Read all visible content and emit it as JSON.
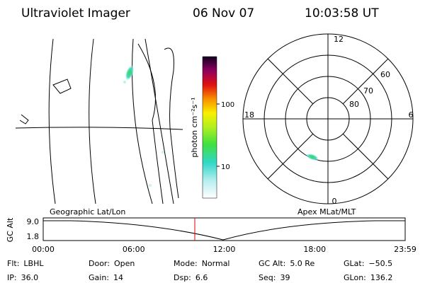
{
  "header": {
    "title": "Ultraviolet Imager",
    "date": "06 Nov 07",
    "time": "10:03:58 UT"
  },
  "colorbar": {
    "label": "photon cm⁻²s⁻¹",
    "ticks": [
      "100",
      "10"
    ]
  },
  "polar": {
    "mlt_labels": [
      "12",
      "18",
      "6",
      "0"
    ],
    "lat_labels": [
      "60",
      "70",
      "80"
    ]
  },
  "panel_labels": {
    "left": "Geographic Lat/Lon",
    "right": "Apex MLat/MLT"
  },
  "alt_plot": {
    "ylabel": "GC Alt",
    "yticks": [
      "9.0",
      "1.8"
    ],
    "xticks": [
      "00:00",
      "06:00",
      "12:00",
      "18:00",
      "23:59"
    ]
  },
  "info": [
    [
      {
        "label": "Flt:",
        "value": "LBHL"
      },
      {
        "label": "Door:",
        "value": "Open"
      },
      {
        "label": "Mode:",
        "value": "Normal"
      },
      {
        "label": "GC Alt:",
        "value": "5.0 Re"
      },
      {
        "label": "GLat:",
        "value": "−50.5"
      }
    ],
    [
      {
        "label": "IP:",
        "value": "36.0"
      },
      {
        "label": "Gain:",
        "value": "14"
      },
      {
        "label": "Dsp:",
        "value": "6.6"
      },
      {
        "label": "Seq:",
        "value": "39"
      },
      {
        "label": "GLon:",
        "value": "136.2"
      }
    ]
  ]
}
